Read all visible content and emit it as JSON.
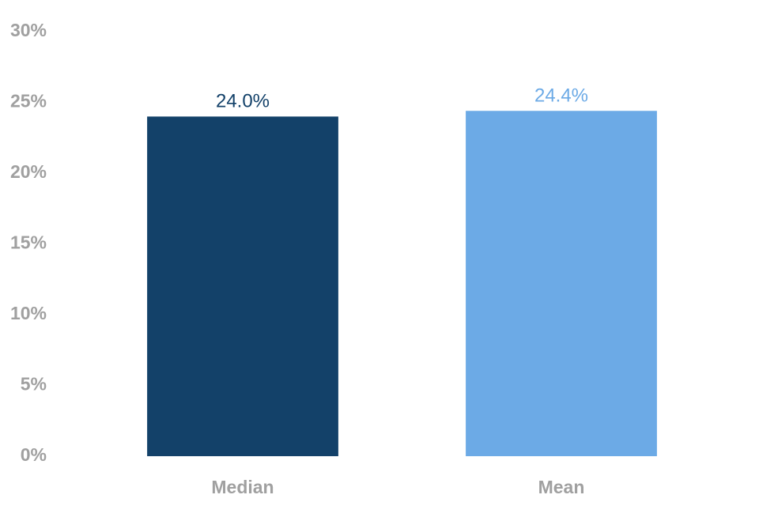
{
  "chart_data": {
    "type": "bar",
    "categories": [
      "Median",
      "Mean"
    ],
    "values": [
      24.0,
      24.4
    ],
    "value_labels": [
      "24.0%",
      "24.4%"
    ],
    "colors": [
      "#134169",
      "#6caae6"
    ],
    "ylim": [
      0,
      30
    ],
    "yticks": [
      {
        "value": 0,
        "label": "0%"
      },
      {
        "value": 5,
        "label": "5%"
      },
      {
        "value": 10,
        "label": "10%"
      },
      {
        "value": 15,
        "label": "15%"
      },
      {
        "value": 20,
        "label": "20%"
      },
      {
        "value": 25,
        "label": "25%"
      },
      {
        "value": 30,
        "label": "30%"
      }
    ],
    "grid": false
  }
}
